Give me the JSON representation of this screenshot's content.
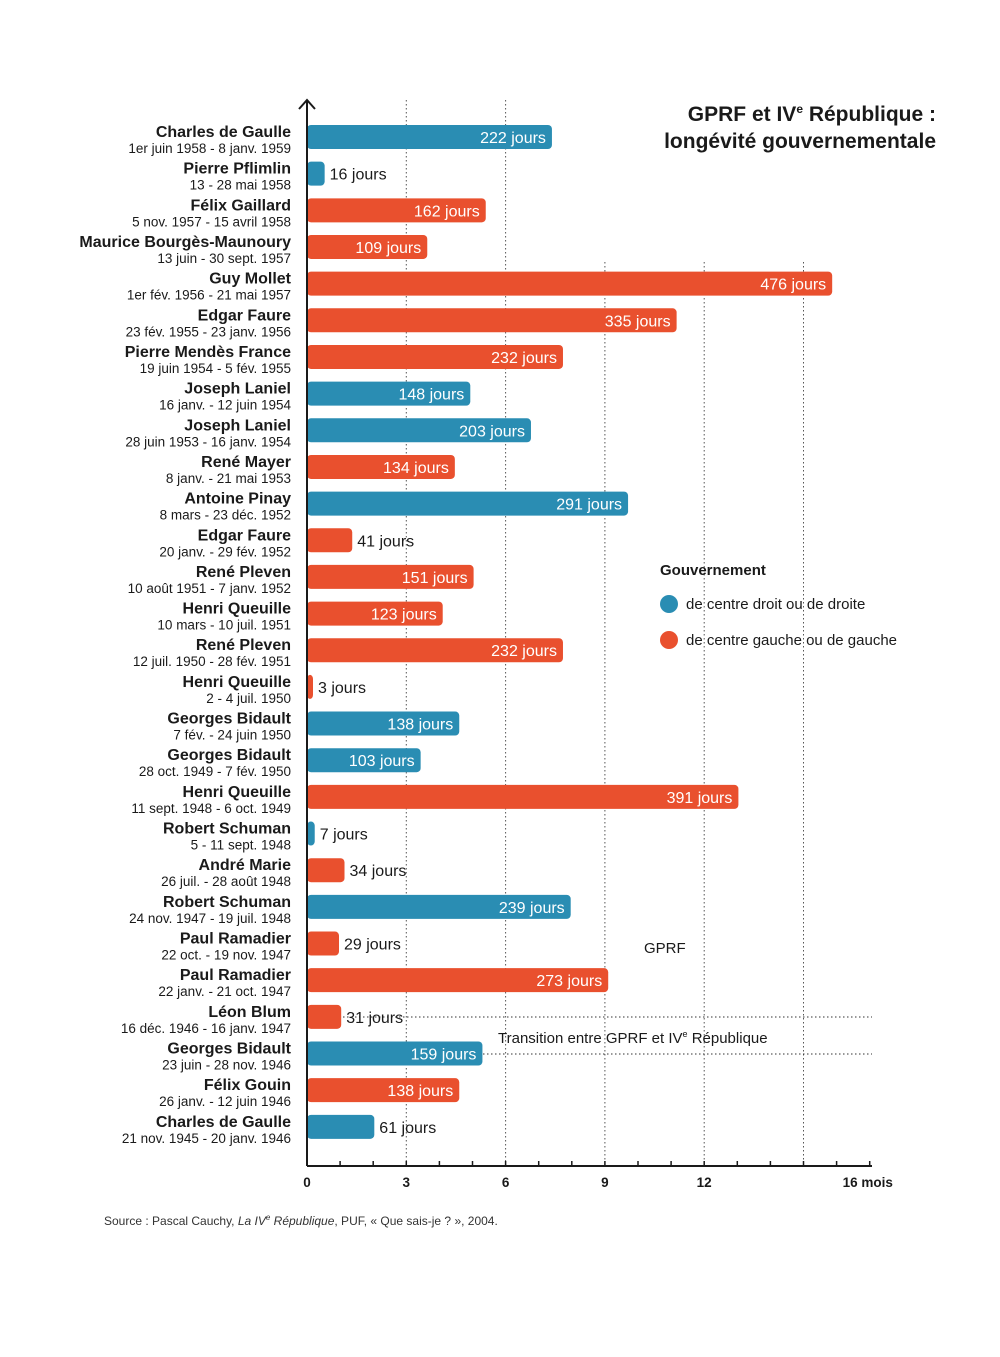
{
  "title": {
    "line1_prefix": "GPRF et IV",
    "line1_sup": "e",
    "line1_suffix": " République :",
    "line2": "longévité gouvernementale"
  },
  "legend": {
    "title": "Gouvernement",
    "items": [
      {
        "label": "de centre droit ou de droite",
        "color": "#2a8db3"
      },
      {
        "label": "de centre gauche ou de gauche",
        "color": "#e9502e"
      }
    ]
  },
  "periods": {
    "gprf": "GPRF",
    "transition_prefix": "Transition entre GPRF et IV",
    "transition_sup": "e",
    "transition_suffix": " République"
  },
  "source": {
    "prefix": "Source : Pascal Cauchy, ",
    "book_prefix": "La IV",
    "book_sup": "e",
    "book_suffix": " République",
    "suffix": ", PUF, « Que sais-je ? », 2004."
  },
  "chart_data": {
    "type": "bar",
    "orientation": "horizontal",
    "title": "GPRF et IVe République : longévité gouvernementale",
    "xlabel": "mois",
    "x_ticks": [
      {
        "value": 0,
        "label": "0"
      },
      {
        "value": 3,
        "label": "3"
      },
      {
        "value": 6,
        "label": "6"
      },
      {
        "value": 9,
        "label": "9"
      },
      {
        "value": 12,
        "label": "12"
      },
      {
        "value": 16,
        "label": "16 mois"
      }
    ],
    "xlim": [
      0,
      17
    ],
    "days_per_month": 30,
    "colors": {
      "droite": "#2a8db3",
      "gauche": "#e9502e"
    },
    "value_suffix": " jours",
    "bars": [
      {
        "name": "Charles de Gaulle",
        "dates": "1er juin 1958 - 8 janv. 1959",
        "days": 222,
        "camp": "droite"
      },
      {
        "name": "Pierre Pflimlin",
        "dates": "13 - 28 mai 1958",
        "days": 16,
        "camp": "droite"
      },
      {
        "name": "Félix Gaillard",
        "dates": "5 nov. 1957 - 15 avril 1958",
        "days": 162,
        "camp": "gauche"
      },
      {
        "name": "Maurice Bourgès-Maunoury",
        "dates": "13 juin - 30 sept. 1957",
        "days": 109,
        "camp": "gauche"
      },
      {
        "name": "Guy Mollet",
        "dates": "1er fév. 1956 - 21 mai 1957",
        "days": 476,
        "camp": "gauche"
      },
      {
        "name": "Edgar Faure",
        "dates": "23 fév. 1955 - 23 janv. 1956",
        "days": 335,
        "camp": "gauche"
      },
      {
        "name": "Pierre Mendès France",
        "dates": "19 juin 1954 - 5 fév. 1955",
        "days": 232,
        "camp": "gauche"
      },
      {
        "name": "Joseph Laniel",
        "dates": "16 janv. - 12 juin 1954",
        "days": 148,
        "camp": "droite"
      },
      {
        "name": "Joseph Laniel",
        "dates": "28 juin 1953 - 16 janv. 1954",
        "days": 203,
        "camp": "droite"
      },
      {
        "name": "René Mayer",
        "dates": "8 janv. - 21 mai 1953",
        "days": 134,
        "camp": "gauche"
      },
      {
        "name": "Antoine Pinay",
        "dates": "8 mars - 23 déc. 1952",
        "days": 291,
        "camp": "droite"
      },
      {
        "name": "Edgar Faure",
        "dates": "20 janv. - 29 fév. 1952",
        "days": 41,
        "camp": "gauche"
      },
      {
        "name": "René Pleven",
        "dates": "10 août 1951 - 7 janv. 1952",
        "days": 151,
        "camp": "gauche"
      },
      {
        "name": "Henri Queuille",
        "dates": "10 mars - 10 juil. 1951",
        "days": 123,
        "camp": "gauche"
      },
      {
        "name": "René Pleven",
        "dates": "12 juil. 1950 - 28 fév. 1951",
        "days": 232,
        "camp": "gauche"
      },
      {
        "name": "Henri Queuille",
        "dates": "2 - 4 juil. 1950",
        "days": 3,
        "camp": "gauche"
      },
      {
        "name": "Georges Bidault",
        "dates": "7 fév. - 24 juin 1950",
        "days": 138,
        "camp": "droite"
      },
      {
        "name": "Georges Bidault",
        "dates": "28 oct. 1949 - 7 fév. 1950",
        "days": 103,
        "camp": "droite"
      },
      {
        "name": "Henri Queuille",
        "dates": "11 sept. 1948 - 6 oct. 1949",
        "days": 391,
        "camp": "gauche"
      },
      {
        "name": "Robert Schuman",
        "dates": "5 - 11 sept. 1948",
        "days": 7,
        "camp": "droite"
      },
      {
        "name": "André Marie",
        "dates": "26 juil. - 28 août 1948",
        "days": 34,
        "camp": "gauche"
      },
      {
        "name": "Robert Schuman",
        "dates": "24 nov. 1947 - 19 juil. 1948",
        "days": 239,
        "camp": "droite"
      },
      {
        "name": "Paul Ramadier",
        "dates": "22 oct. - 19 nov. 1947",
        "days": 29,
        "camp": "gauche"
      },
      {
        "name": "Paul Ramadier",
        "dates": "22 janv. - 21 oct. 1947",
        "days": 273,
        "camp": "gauche"
      },
      {
        "name": "Léon Blum",
        "dates": "16 déc. 1946 - 16 janv. 1947",
        "days": 31,
        "camp": "gauche"
      },
      {
        "name": "Georges Bidault",
        "dates": "23 juin - 28 nov. 1946",
        "days": 159,
        "camp": "droite"
      },
      {
        "name": "Félix Gouin",
        "dates": "26 janv. - 12 juin 1946",
        "days": 138,
        "camp": "gauche"
      },
      {
        "name": "Charles de Gaulle",
        "dates": "21 nov. 1945 - 20 janv. 1946",
        "days": 61,
        "camp": "droite"
      }
    ]
  }
}
